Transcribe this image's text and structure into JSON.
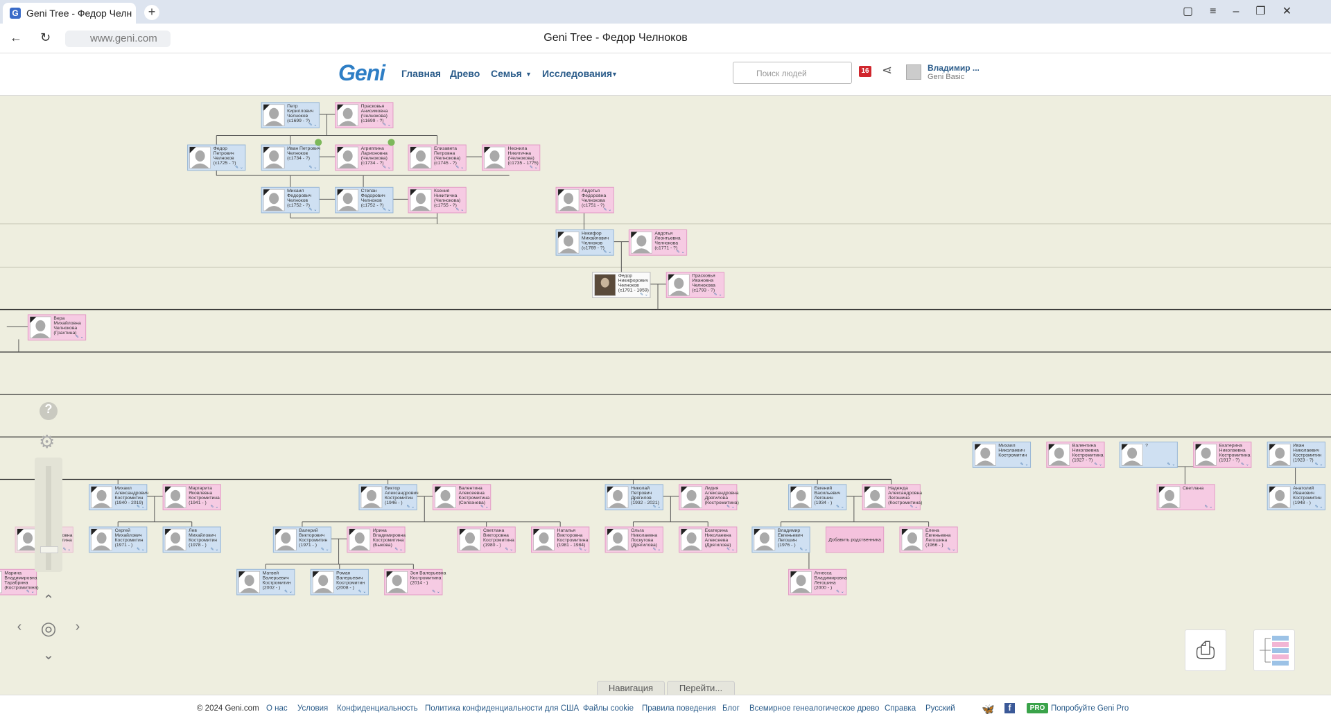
{
  "browser": {
    "tab_title": "Geni Tree - Федор Челн",
    "url": "www.geni.com",
    "page_title": "Geni Tree - Федор Челноков"
  },
  "header": {
    "logo": "Geni",
    "nav": [
      "Главная",
      "Древо",
      "Семья",
      "Исследования"
    ],
    "search_placeholder": "Поиск людей",
    "notifications": 16,
    "user_name": "Владимир ...",
    "user_plan": "Geni Basic"
  },
  "tree": {
    "nodes": [
      {
        "lines": [
          "Петр",
          "Кириллович",
          "Челноков",
          "(c1699 - ?)"
        ]
      },
      {
        "lines": [
          "Прасковья",
          "Анисимовна",
          "(Челнокова)",
          "(c1699 - ?)"
        ]
      },
      {
        "lines": [
          "Федор",
          "Петрович",
          "Челноков",
          "(c1725 - ?)"
        ]
      },
      {
        "lines": [
          "Иван Петрович",
          "Челноков",
          "(c1734 - ?)"
        ]
      },
      {
        "lines": [
          "Агриппина",
          "Ларионовна",
          "(Челнокова)",
          "(c1734 - ?)"
        ]
      },
      {
        "lines": [
          "Елизавета",
          "Петровна",
          "(Челнокова)",
          "(c1745 - ?)"
        ]
      },
      {
        "lines": [
          "Неонила",
          "Никитична",
          "(Челнокова)",
          "(c1735 - 1775)"
        ]
      },
      {
        "lines": [
          "Михаил",
          "Федорович",
          "Челноков",
          "(c1752 - ?)"
        ]
      },
      {
        "lines": [
          "Степан",
          "Федорович",
          "Челноков",
          "(c1752 - ?)"
        ]
      },
      {
        "lines": [
          "Ксения",
          "Никитична",
          "(Челнокова)",
          "(c1755 - ?)"
        ]
      },
      {
        "lines": [
          "Авдотья",
          "Федоровна",
          "Челнокова",
          "(c1751 - ?)"
        ]
      },
      {
        "lines": [
          "Никифор",
          "Михайлович",
          "Челноков",
          "(c1769 - ?)"
        ]
      },
      {
        "lines": [
          "Авдотья",
          "Леонтьевна",
          "Челнокова",
          "(c1771 - ?)"
        ]
      },
      {
        "lines": [
          "Федор",
          "Никифорович",
          "Челноков",
          "(c1791 - 1859)"
        ]
      },
      {
        "lines": [
          "Прасковья",
          "Ивановна",
          "Челнокова",
          "(c1793 - ?)"
        ]
      },
      {
        "lines": [
          "Вера",
          "Михайловна",
          "Челнокова",
          "(Грахтина)"
        ]
      },
      {
        "lines": [
          "Михаил",
          "Николаевич",
          "Костромитин"
        ]
      },
      {
        "lines": [
          "Валентина",
          "Николаевна",
          "Костромитина",
          "(1927 - ?)"
        ]
      },
      {
        "lines": [
          "?"
        ]
      },
      {
        "lines": [
          "Екатерина",
          "Николаевна",
          "Костромитина",
          "(1917 - ?)"
        ]
      },
      {
        "lines": [
          "Иван",
          "Николаевич",
          "Костромитин",
          "(1923 - ?)"
        ]
      },
      {
        "lines": [
          "Михаил",
          "Александрович",
          "Костромитин",
          "(1940 - 2019)"
        ]
      },
      {
        "lines": [
          "Маргарита",
          "Яковлевна",
          "Костромитина",
          "(1941 - )"
        ]
      },
      {
        "lines": [
          "Виктор",
          "Александрович",
          "Костромитин",
          "(1946 - )"
        ]
      },
      {
        "lines": [
          "Валентина",
          "Алексеевна",
          "Костромитина",
          "(Селезнева)"
        ]
      },
      {
        "lines": [
          "Николай",
          "Петрович",
          "Дрягилов",
          "(1932 - 2021)"
        ]
      },
      {
        "lines": [
          "Лидия",
          "Александровна",
          "Дрягилова",
          "(Костромитина)"
        ]
      },
      {
        "lines": [
          "Евгений",
          "Васильевич",
          "Легошин",
          "(1934 - )"
        ]
      },
      {
        "lines": [
          "Надежда",
          "Александровна",
          "Легошина",
          "(Костромитина)"
        ]
      },
      {
        "lines": [
          "Светлана"
        ]
      },
      {
        "lines": [
          "Анатолий",
          "Иванович",
          "Костромитин",
          "(1948 - )"
        ]
      },
      {
        "lines": [
          "Ирина",
          "Валентиновна",
          "Костромитина"
        ]
      },
      {
        "lines": [
          "Сергей",
          "Михайлович",
          "Костромитин",
          "(1971 - )"
        ]
      },
      {
        "lines": [
          "Лев",
          "Михайлович",
          "Костромитин",
          "(1978 - )"
        ]
      },
      {
        "lines": [
          "Валерий",
          "Викторович",
          "Костромитин",
          "(1971 - )"
        ]
      },
      {
        "lines": [
          "Ирина",
          "Владимировна",
          "Костромитина",
          "(Быкова)"
        ]
      },
      {
        "lines": [
          "Светлана",
          "Викторовна",
          "Костромитина",
          "(1980 - )"
        ]
      },
      {
        "lines": [
          "Наталья",
          "Викторовна",
          "Костромитина",
          "(1981 - 1984)"
        ]
      },
      {
        "lines": [
          "Ольга",
          "Николаевна",
          "Лоскутова",
          "(Дрягилова)"
        ]
      },
      {
        "lines": [
          "Екатерина",
          "Николаевна",
          "Алексеева",
          "(Дрягилова)"
        ]
      },
      {
        "lines": [
          "Владимир",
          "Евгеньевич",
          "Легошин",
          "(1976 - )"
        ]
      },
      {
        "lines": [
          "Добавить родственника"
        ]
      },
      {
        "lines": [
          "Елена",
          "Евгеньевна",
          "Легошина",
          "(1966 - )"
        ]
      },
      {
        "lines": [
          "Марина",
          "Владимировна",
          "Тарабрина",
          "(Костромитина)"
        ]
      },
      {
        "lines": [
          "Матвей",
          "Валерьевич",
          "Костромитин",
          "(2002 - )"
        ]
      },
      {
        "lines": [
          "Роман",
          "Валерьевич",
          "Костромитин",
          "(2008 - )"
        ]
      },
      {
        "lines": [
          "Зоя Валерьевна",
          "Костромитина",
          "(2014 - )"
        ]
      },
      {
        "lines": [
          "Агнесса",
          "Владимировна",
          "Легошина",
          "(2000 - )"
        ]
      }
    ]
  },
  "bottom_tabs": [
    "Навигация",
    "Перейти..."
  ],
  "footer": {
    "links": [
      "© 2024 Geni.com",
      "О нас",
      "Условия",
      "Конфиденциальность",
      "Политика конфиденциальности для США",
      "Файлы cookie",
      "Правила поведения",
      "Блог",
      "Всемирное генеалогическое древо",
      "Справка",
      "Русский"
    ],
    "pro_badge": "PRO",
    "pro_link": "Попробуйте Geni Pro"
  }
}
